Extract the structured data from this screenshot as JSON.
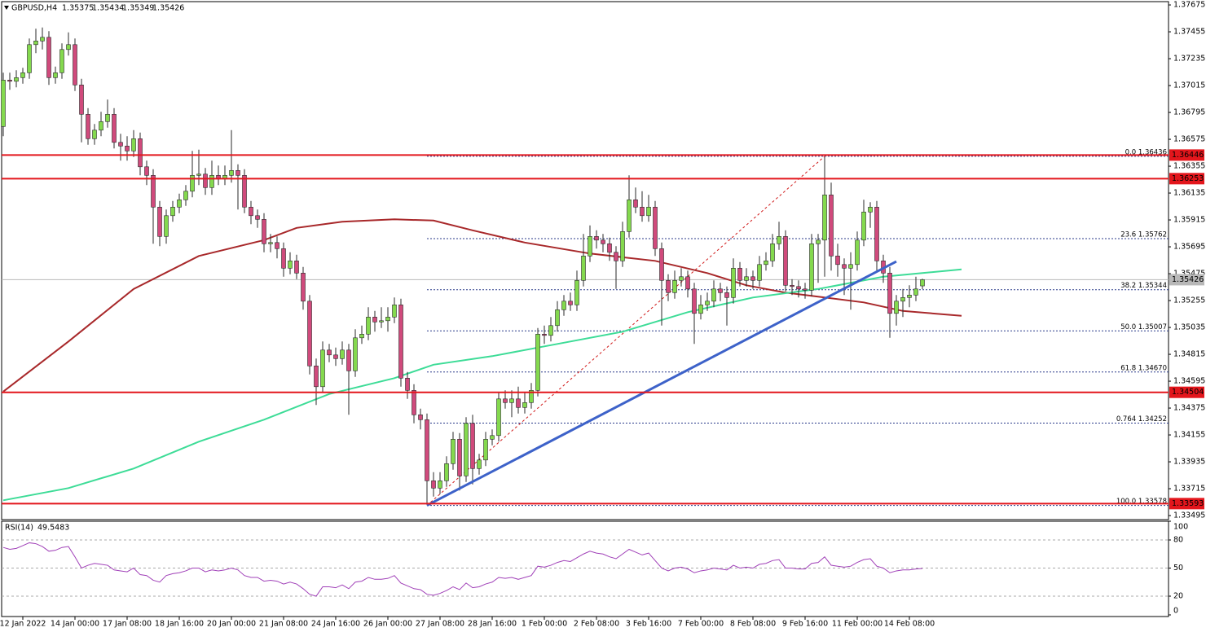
{
  "chart_data": {
    "type": "candlestick",
    "symbol": "GBPUSD,H4",
    "colors": {
      "up": "#84d94e",
      "down": "#d04a7c",
      "wick": "#2a2a2a",
      "level": "#e3161c",
      "current": "#b8b8b8"
    },
    "xlim": [
      -0.25,
      178.75
    ],
    "ylim": [
      1.33462,
      1.37702
    ],
    "yticks": [
      1.37675,
      1.37455,
      1.37235,
      1.37015,
      1.36795,
      1.36575,
      1.36355,
      1.36135,
      1.35915,
      1.35695,
      1.35475,
      1.35255,
      1.35035,
      1.34815,
      1.34595,
      1.34375,
      1.34155,
      1.33935,
      1.33715,
      1.33495
    ],
    "xticks": [
      {
        "value": 3,
        "label": "12 Jan 2022"
      },
      {
        "value": 11,
        "label": "14 Jan 00:00"
      },
      {
        "value": 19,
        "label": "17 Jan 08:00"
      },
      {
        "value": 27,
        "label": "18 Jan 16:00"
      },
      {
        "value": 35,
        "label": "20 Jan 00:00"
      },
      {
        "value": 43,
        "label": "21 Jan 08:00"
      },
      {
        "value": 51,
        "label": "24 Jan 16:00"
      },
      {
        "value": 59,
        "label": "26 Jan 00:00"
      },
      {
        "value": 67,
        "label": "27 Jan 08:00"
      },
      {
        "value": 75,
        "label": "28 Jan 16:00"
      },
      {
        "value": 83,
        "label": "1 Feb 00:00"
      },
      {
        "value": 91,
        "label": "2 Feb 08:00"
      },
      {
        "value": 99,
        "label": "3 Feb 16:00"
      },
      {
        "value": 107,
        "label": "7 Feb 00:00"
      },
      {
        "value": 115,
        "label": "8 Feb 08:00"
      },
      {
        "value": 123,
        "label": "9 Feb 16:00"
      },
      {
        "value": 131,
        "label": "11 Feb 00:00"
      },
      {
        "value": 139,
        "label": "14 Feb 08:00"
      }
    ],
    "candles": [
      [
        1.3668,
        1.3712,
        1.366,
        1.3706
      ],
      [
        1.3706,
        1.3712,
        1.3698,
        1.3705
      ],
      [
        1.3705,
        1.3714,
        1.37,
        1.3708
      ],
      [
        1.3708,
        1.3716,
        1.3703,
        1.3712
      ],
      [
        1.3712,
        1.374,
        1.3707,
        1.3735
      ],
      [
        1.3735,
        1.3748,
        1.3728,
        1.3738
      ],
      [
        1.3738,
        1.3749,
        1.3731,
        1.3741
      ],
      [
        1.3741,
        1.3746,
        1.3702,
        1.3708
      ],
      [
        1.3708,
        1.3717,
        1.3703,
        1.3712
      ],
      [
        1.3712,
        1.3736,
        1.3707,
        1.3731
      ],
      [
        1.3731,
        1.3745,
        1.3726,
        1.3735
      ],
      [
        1.3735,
        1.374,
        1.3697,
        1.3702
      ],
      [
        1.3702,
        1.3707,
        1.3655,
        1.3678
      ],
      [
        1.3678,
        1.3683,
        1.3653,
        1.3658
      ],
      [
        1.3658,
        1.367,
        1.3653,
        1.3665
      ],
      [
        1.3665,
        1.368,
        1.366,
        1.3672
      ],
      [
        1.3672,
        1.369,
        1.3667,
        1.3678
      ],
      [
        1.3678,
        1.3683,
        1.365,
        1.3655
      ],
      [
        1.3655,
        1.3662,
        1.364,
        1.3652
      ],
      [
        1.3652,
        1.366,
        1.364,
        1.3648
      ],
      [
        1.3648,
        1.3665,
        1.3643,
        1.3658
      ],
      [
        1.3658,
        1.3663,
        1.3628,
        1.3635
      ],
      [
        1.3635,
        1.364,
        1.362,
        1.3628
      ],
      [
        1.3628,
        1.3633,
        1.3572,
        1.3602
      ],
      [
        1.3602,
        1.3607,
        1.357,
        1.3578
      ],
      [
        1.3578,
        1.36,
        1.3572,
        1.3595
      ],
      [
        1.3595,
        1.3607,
        1.359,
        1.3602
      ],
      [
        1.3602,
        1.3613,
        1.3597,
        1.3608
      ],
      [
        1.3608,
        1.362,
        1.3603,
        1.3615
      ],
      [
        1.3615,
        1.3648,
        1.361,
        1.3628
      ],
      [
        1.3628,
        1.3649,
        1.362,
        1.3629
      ],
      [
        1.3629,
        1.3634,
        1.3612,
        1.3618
      ],
      [
        1.3618,
        1.364,
        1.3612,
        1.3628
      ],
      [
        1.3628,
        1.3636,
        1.362,
        1.3625
      ],
      [
        1.3625,
        1.3636,
        1.362,
        1.3628
      ],
      [
        1.3628,
        1.3665,
        1.3622,
        1.3632
      ],
      [
        1.3632,
        1.3637,
        1.36,
        1.3628
      ],
      [
        1.3628,
        1.3633,
        1.3597,
        1.3602
      ],
      [
        1.3602,
        1.3607,
        1.3588,
        1.3595
      ],
      [
        1.3595,
        1.36,
        1.3585,
        1.3592
      ],
      [
        1.3592,
        1.3597,
        1.3565,
        1.3572
      ],
      [
        1.3572,
        1.358,
        1.3565,
        1.3573
      ],
      [
        1.3573,
        1.3578,
        1.356,
        1.3568
      ],
      [
        1.3568,
        1.3573,
        1.3545,
        1.3552
      ],
      [
        1.3552,
        1.3565,
        1.3547,
        1.3558
      ],
      [
        1.3558,
        1.3563,
        1.3543,
        1.3548
      ],
      [
        1.3548,
        1.3553,
        1.3518,
        1.3525
      ],
      [
        1.3525,
        1.353,
        1.3465,
        1.3472
      ],
      [
        1.3472,
        1.3478,
        1.344,
        1.3455
      ],
      [
        1.3455,
        1.3492,
        1.345,
        1.3485
      ],
      [
        1.3485,
        1.349,
        1.3475,
        1.3481
      ],
      [
        1.3481,
        1.3487,
        1.3472,
        1.3478
      ],
      [
        1.3478,
        1.3492,
        1.3473,
        1.3485
      ],
      [
        1.3485,
        1.349,
        1.3432,
        1.3468
      ],
      [
        1.3468,
        1.3502,
        1.3463,
        1.3495
      ],
      [
        1.3495,
        1.3505,
        1.349,
        1.3498
      ],
      [
        1.3498,
        1.352,
        1.3493,
        1.3512
      ],
      [
        1.3512,
        1.3517,
        1.35,
        1.3508
      ],
      [
        1.3508,
        1.352,
        1.3503,
        1.3509
      ],
      [
        1.3509,
        1.352,
        1.35,
        1.3512
      ],
      [
        1.3512,
        1.3528,
        1.3507,
        1.3522
      ],
      [
        1.3522,
        1.3527,
        1.3455,
        1.3462
      ],
      [
        1.3462,
        1.3467,
        1.3445,
        1.3452
      ],
      [
        1.3452,
        1.3457,
        1.3425,
        1.3432
      ],
      [
        1.3432,
        1.3437,
        1.342,
        1.3428
      ],
      [
        1.3428,
        1.3433,
        1.3358,
        1.3378
      ],
      [
        1.3378,
        1.3385,
        1.3365,
        1.3372
      ],
      [
        1.3372,
        1.3385,
        1.3367,
        1.3378
      ],
      [
        1.3378,
        1.3398,
        1.3373,
        1.3392
      ],
      [
        1.3392,
        1.3418,
        1.3387,
        1.3412
      ],
      [
        1.3412,
        1.3417,
        1.337,
        1.3382
      ],
      [
        1.3382,
        1.343,
        1.3377,
        1.3425
      ],
      [
        1.3425,
        1.3432,
        1.3375,
        1.3388
      ],
      [
        1.3388,
        1.34,
        1.3383,
        1.3395
      ],
      [
        1.3395,
        1.3418,
        1.339,
        1.3412
      ],
      [
        1.3412,
        1.342,
        1.3407,
        1.3415
      ],
      [
        1.3415,
        1.345,
        1.341,
        1.3445
      ],
      [
        1.3445,
        1.3452,
        1.3437,
        1.3442
      ],
      [
        1.3442,
        1.3452,
        1.343,
        1.3445
      ],
      [
        1.3445,
        1.3455,
        1.3433,
        1.3438
      ],
      [
        1.3438,
        1.345,
        1.3433,
        1.3442
      ],
      [
        1.3442,
        1.3458,
        1.3437,
        1.3452
      ],
      [
        1.3452,
        1.3503,
        1.3447,
        1.3498
      ],
      [
        1.3498,
        1.3505,
        1.349,
        1.3497
      ],
      [
        1.3497,
        1.3512,
        1.3492,
        1.3505
      ],
      [
        1.3505,
        1.3525,
        1.35,
        1.3518
      ],
      [
        1.3518,
        1.353,
        1.3513,
        1.3525
      ],
      [
        1.3525,
        1.3532,
        1.3517,
        1.3522
      ],
      [
        1.3522,
        1.355,
        1.3517,
        1.3542
      ],
      [
        1.3542,
        1.358,
        1.3537,
        1.3562
      ],
      [
        1.3562,
        1.3587,
        1.3557,
        1.3578
      ],
      [
        1.3578,
        1.3583,
        1.3568,
        1.3575
      ],
      [
        1.3575,
        1.358,
        1.3565,
        1.3572
      ],
      [
        1.3572,
        1.3577,
        1.3558,
        1.3565
      ],
      [
        1.3565,
        1.357,
        1.3535,
        1.3558
      ],
      [
        1.3558,
        1.359,
        1.3553,
        1.3582
      ],
      [
        1.3582,
        1.3628,
        1.3577,
        1.3608
      ],
      [
        1.3608,
        1.3618,
        1.3597,
        1.3602
      ],
      [
        1.3602,
        1.3615,
        1.359,
        1.3595
      ],
      [
        1.3595,
        1.3612,
        1.359,
        1.3602
      ],
      [
        1.3602,
        1.3607,
        1.3562,
        1.3568
      ],
      [
        1.3568,
        1.3573,
        1.3505,
        1.3542
      ],
      [
        1.3542,
        1.3547,
        1.3525,
        1.3532
      ],
      [
        1.3532,
        1.355,
        1.3527,
        1.3542
      ],
      [
        1.3542,
        1.3552,
        1.3537,
        1.3545
      ],
      [
        1.3545,
        1.355,
        1.3528,
        1.3535
      ],
      [
        1.3535,
        1.354,
        1.349,
        1.3515
      ],
      [
        1.3515,
        1.353,
        1.351,
        1.3522
      ],
      [
        1.3522,
        1.3532,
        1.3517,
        1.3525
      ],
      [
        1.3525,
        1.3542,
        1.352,
        1.3535
      ],
      [
        1.3535,
        1.354,
        1.3525,
        1.3532
      ],
      [
        1.3532,
        1.3537,
        1.3505,
        1.3528
      ],
      [
        1.3528,
        1.356,
        1.3523,
        1.3552
      ],
      [
        1.3552,
        1.3557,
        1.3537,
        1.3542
      ],
      [
        1.3542,
        1.3552,
        1.3537,
        1.3545
      ],
      [
        1.3545,
        1.355,
        1.3535,
        1.3542
      ],
      [
        1.3542,
        1.3562,
        1.3537,
        1.3555
      ],
      [
        1.3555,
        1.3565,
        1.355,
        1.3558
      ],
      [
        1.3558,
        1.358,
        1.3553,
        1.3572
      ],
      [
        1.3572,
        1.359,
        1.3567,
        1.3578
      ],
      [
        1.3578,
        1.3583,
        1.3533,
        1.3538
      ],
      [
        1.3538,
        1.3543,
        1.353,
        1.3537
      ],
      [
        1.3537,
        1.3542,
        1.3528,
        1.3535
      ],
      [
        1.3535,
        1.354,
        1.3527,
        1.3534
      ],
      [
        1.3534,
        1.358,
        1.3529,
        1.3572
      ],
      [
        1.3572,
        1.358,
        1.354,
        1.3575
      ],
      [
        1.3575,
        1.3643,
        1.3545,
        1.3612
      ],
      [
        1.3612,
        1.3622,
        1.355,
        1.3562
      ],
      [
        1.3562,
        1.3572,
        1.3545,
        1.3555
      ],
      [
        1.3555,
        1.356,
        1.353,
        1.3552
      ],
      [
        1.3552,
        1.3565,
        1.3518,
        1.3555
      ],
      [
        1.3555,
        1.3582,
        1.355,
        1.3575
      ],
      [
        1.3575,
        1.3608,
        1.357,
        1.3598
      ],
      [
        1.3598,
        1.3606,
        1.3585,
        1.3602
      ],
      [
        1.3602,
        1.3607,
        1.355,
        1.3558
      ],
      [
        1.3558,
        1.3563,
        1.354,
        1.3548
      ],
      [
        1.3548,
        1.3553,
        1.3495,
        1.3515
      ],
      [
        1.3515,
        1.353,
        1.3505,
        1.3525
      ],
      [
        1.3525,
        1.3535,
        1.3512,
        1.3528
      ],
      [
        1.3528,
        1.3538,
        1.352,
        1.353
      ],
      [
        1.353,
        1.3545,
        1.3525,
        1.3535
      ],
      [
        1.35375,
        1.35434,
        1.35349,
        1.35426
      ]
    ],
    "moving_averages": [
      {
        "color": "#a8282a",
        "x": [
          0,
          10,
          20,
          30,
          40,
          45,
          52,
          60,
          66,
          72,
          80,
          90,
          100,
          108,
          114,
          120,
          126,
          132,
          138,
          147
        ],
        "values": [
          1.3451,
          1.3492,
          1.3535,
          1.3562,
          1.3575,
          1.3585,
          1.359,
          1.3592,
          1.3591,
          1.3583,
          1.3573,
          1.3564,
          1.3558,
          1.3548,
          1.3538,
          1.3532,
          1.3528,
          1.3524,
          1.3517,
          1.3513
        ]
      },
      {
        "color": "#3ddc97",
        "x": [
          0,
          10,
          20,
          30,
          40,
          50,
          60,
          66,
          75,
          85,
          95,
          105,
          115,
          125,
          135,
          147
        ],
        "values": [
          1.3362,
          1.3372,
          1.3388,
          1.341,
          1.3428,
          1.3449,
          1.3462,
          1.3473,
          1.348,
          1.349,
          1.35,
          1.3516,
          1.3528,
          1.3535,
          1.3545,
          1.3551
        ]
      }
    ],
    "levels": [
      1.36446,
      1.36253,
      1.34504,
      1.33593
    ],
    "trendline": {
      "color": "#3d62c9",
      "x": [
        65,
        137
      ],
      "values": [
        1.33578,
        1.35575
      ]
    },
    "fibonacci": {
      "color": "#d01818",
      "x": [
        65,
        126
      ],
      "levels": [
        {
          "value": 1.36436,
          "label": "0.0 1.36436"
        },
        {
          "value": 1.35762,
          "label": "23.6 1.35762"
        },
        {
          "value": 1.35344,
          "label": "38.2 1.35344"
        },
        {
          "value": 1.35007,
          "label": "50.0 1.35007"
        },
        {
          "value": 1.3467,
          "label": "61.8 1.34670"
        },
        {
          "value": 1.34252,
          "label": "0.764 1.34252"
        },
        {
          "value": 1.33578,
          "label": "100.0 1.33578"
        }
      ]
    },
    "rsi": {
      "name": "RSI(14)",
      "color": "#a040b8",
      "ylim": [
        0,
        100
      ],
      "yticks": [
        100,
        80,
        50,
        20,
        0
      ],
      "values": [
        72,
        70,
        71,
        74,
        77,
        76,
        73,
        68,
        69,
        72,
        73,
        62,
        50,
        53,
        55,
        54,
        53,
        48,
        47,
        46,
        50,
        43,
        42,
        37,
        35,
        42,
        44,
        45,
        47,
        50,
        50,
        46,
        48,
        47,
        48,
        50,
        48,
        42,
        40,
        40,
        36,
        37,
        36,
        33,
        35,
        33,
        28,
        22,
        20,
        30,
        30,
        29,
        32,
        28,
        35,
        36,
        40,
        38,
        38,
        39,
        42,
        34,
        31,
        28,
        27,
        22,
        21,
        23,
        26,
        30,
        27,
        34,
        29,
        30,
        33,
        35,
        40,
        39,
        40,
        38,
        40,
        42,
        52,
        51,
        53,
        56,
        58,
        57,
        61,
        65,
        68,
        66,
        65,
        62,
        60,
        65,
        70,
        67,
        64,
        66,
        58,
        50,
        47,
        50,
        51,
        49,
        45,
        47,
        48,
        50,
        49,
        48,
        53,
        50,
        51,
        50,
        54,
        55,
        58,
        59,
        50,
        50,
        49,
        49,
        55,
        56,
        62,
        53,
        52,
        51,
        52,
        56,
        59,
        60,
        52,
        50,
        45,
        47,
        48,
        48,
        49,
        49.5483
      ]
    }
  }
}
